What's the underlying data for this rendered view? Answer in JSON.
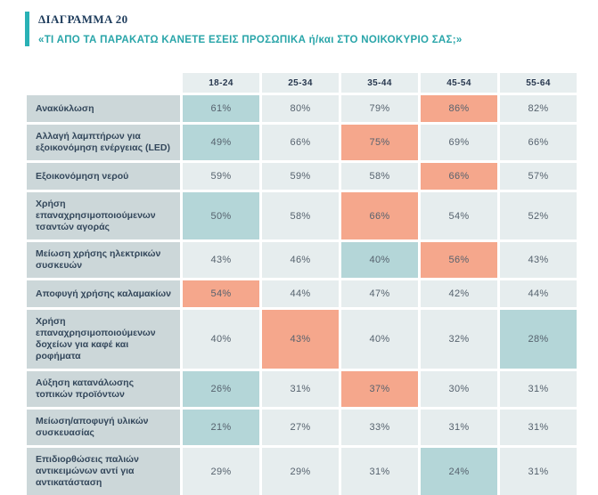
{
  "header": {
    "tag": "ΔΙΑΓΡΑΜΜΑ 20",
    "title": "«ΤΙ ΑΠΟ ΤΑ ΠΑΡΑΚΑΤΩ ΚΑΝΕΤΕ ΕΣΕΙΣ ΠΡΟΣΩΠΙΚΑ ή/και ΣΤΟ ΝΟΙΚΟΚΥΡΙΟ ΣΑΣ;»",
    "accent_color": "#29b1b5",
    "tag_color": "#1e3c5c",
    "title_color": "#29a5a9"
  },
  "colors": {
    "cell_default": "#e6edee",
    "cell_low_teal": "#b4d6d8",
    "cell_high_salmon": "#f5a78c",
    "label_background": "#ccd7d9",
    "header_background": "#e7eeef",
    "label_text": "#33475b",
    "value_text": "#56626e"
  },
  "chart_data": {
    "type": "heatmap",
    "title": "«ΤΙ ΑΠΟ ΤΑ ΠΑΡΑΚΑΤΩ ΚΑΝΕΤΕ ΕΣΕΙΣ ΠΡΟΣΩΠΙΚΑ ή/και ΣΤΟ ΝΟΙΚΟΚΥΡΙΟ ΣΑΣ;»",
    "figure_label": "ΔΙΑΓΡΑΜΜΑ 20",
    "unit": "%",
    "columns": [
      "18-24",
      "25-34",
      "35-44",
      "45-54",
      "55-64"
    ],
    "legend_note": "low = teal highlight, high = salmon highlight, none = default cell",
    "rows": [
      {
        "label": "Ανακύκλωση",
        "values": [
          61,
          80,
          79,
          86,
          82
        ],
        "highlights": [
          "low",
          "none",
          "none",
          "high",
          "none"
        ]
      },
      {
        "label": "Αλλαγή λαμπτήρων για εξοικονόμηση ενέργειας (LED)",
        "values": [
          49,
          66,
          75,
          69,
          66
        ],
        "highlights": [
          "low",
          "none",
          "high",
          "none",
          "none"
        ]
      },
      {
        "label": "Εξοικονόμηση νερού",
        "values": [
          59,
          59,
          58,
          66,
          57
        ],
        "highlights": [
          "none",
          "none",
          "none",
          "high",
          "none"
        ]
      },
      {
        "label": "Χρήση επαναχρησιμοποιούμενων τσαντών αγοράς",
        "values": [
          50,
          58,
          66,
          54,
          52
        ],
        "highlights": [
          "low",
          "none",
          "high",
          "none",
          "none"
        ]
      },
      {
        "label": "Μείωση χρήσης ηλεκτρικών συσκευών",
        "values": [
          43,
          46,
          40,
          56,
          43
        ],
        "highlights": [
          "none",
          "none",
          "low",
          "high",
          "none"
        ]
      },
      {
        "label": "Αποφυγή χρήσης καλαμακίων",
        "values": [
          54,
          44,
          47,
          42,
          44
        ],
        "highlights": [
          "high",
          "none",
          "none",
          "none",
          "none"
        ]
      },
      {
        "label": "Χρήση επαναχρησιμοποιούμενων δοχείων για καφέ και ροφήματα",
        "values": [
          40,
          43,
          40,
          32,
          28
        ],
        "highlights": [
          "none",
          "high",
          "none",
          "none",
          "low"
        ]
      },
      {
        "label": "Αύξηση κατανάλωσης τοπικών προϊόντων",
        "values": [
          26,
          31,
          37,
          30,
          31
        ],
        "highlights": [
          "low",
          "none",
          "high",
          "none",
          "none"
        ]
      },
      {
        "label": "Μείωση/αποφυγή υλικών συσκευασίας",
        "values": [
          21,
          27,
          33,
          31,
          31
        ],
        "highlights": [
          "low",
          "none",
          "none",
          "none",
          "none"
        ]
      },
      {
        "label": "Επιδιορθώσεις παλιών αντικειμώνων αντί για αντικατάσταση",
        "values": [
          29,
          29,
          31,
          24,
          31
        ],
        "highlights": [
          "none",
          "none",
          "none",
          "low",
          "none"
        ]
      }
    ]
  }
}
